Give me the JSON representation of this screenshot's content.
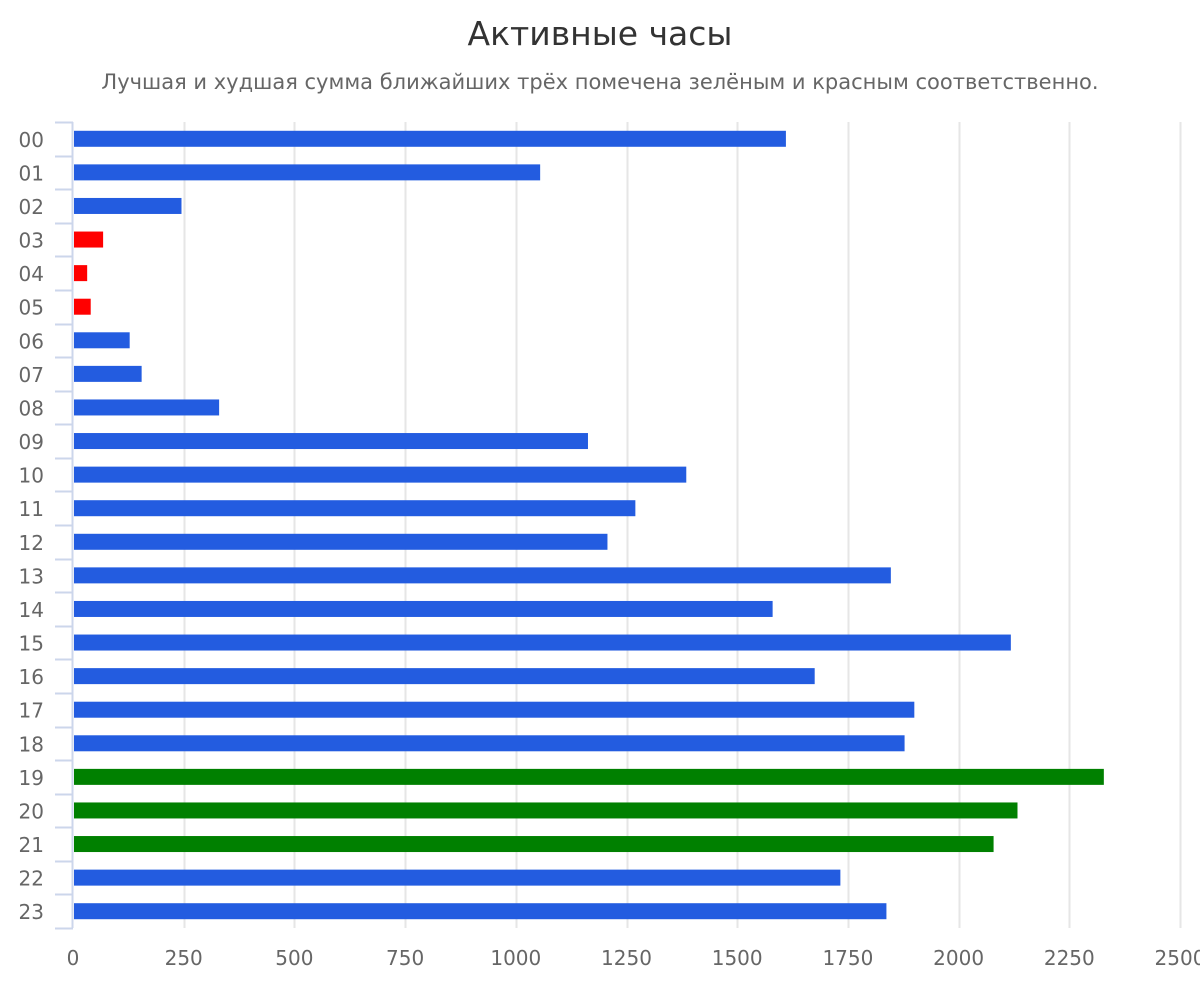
{
  "colors": {
    "default_bar": "#235ce0",
    "best_bar": "#008000",
    "worst_bar": "#ff0000",
    "grid": "#e6e6e6",
    "axis": "#ccd6eb"
  },
  "chart_data": {
    "type": "bar",
    "orientation": "horizontal",
    "title": "Активные часы",
    "subtitle": "Лучшая и худшая сумма ближайших трёх помечена зелёным и красным соответственно.",
    "categories": [
      "00",
      "01",
      "02",
      "03",
      "04",
      "05",
      "06",
      "07",
      "08",
      "09",
      "10",
      "11",
      "12",
      "13",
      "14",
      "15",
      "16",
      "17",
      "18",
      "19",
      "20",
      "21",
      "22",
      "23"
    ],
    "values": [
      1610,
      1055,
      245,
      68,
      32,
      40,
      128,
      155,
      330,
      1163,
      1385,
      1270,
      1207,
      1847,
      1580,
      2118,
      1675,
      1900,
      1878,
      2328,
      2133,
      2079,
      1733,
      1837
    ],
    "highlight": [
      "default",
      "default",
      "default",
      "worst",
      "worst",
      "worst",
      "default",
      "default",
      "default",
      "default",
      "default",
      "default",
      "default",
      "default",
      "default",
      "default",
      "default",
      "default",
      "default",
      "best",
      "best",
      "best",
      "default",
      "default"
    ],
    "xlim": [
      0,
      2500
    ],
    "x_ticks": [
      0,
      250,
      500,
      750,
      1000,
      1250,
      1500,
      1750,
      2000,
      2250,
      2500
    ],
    "grid": true,
    "legend": "none"
  }
}
